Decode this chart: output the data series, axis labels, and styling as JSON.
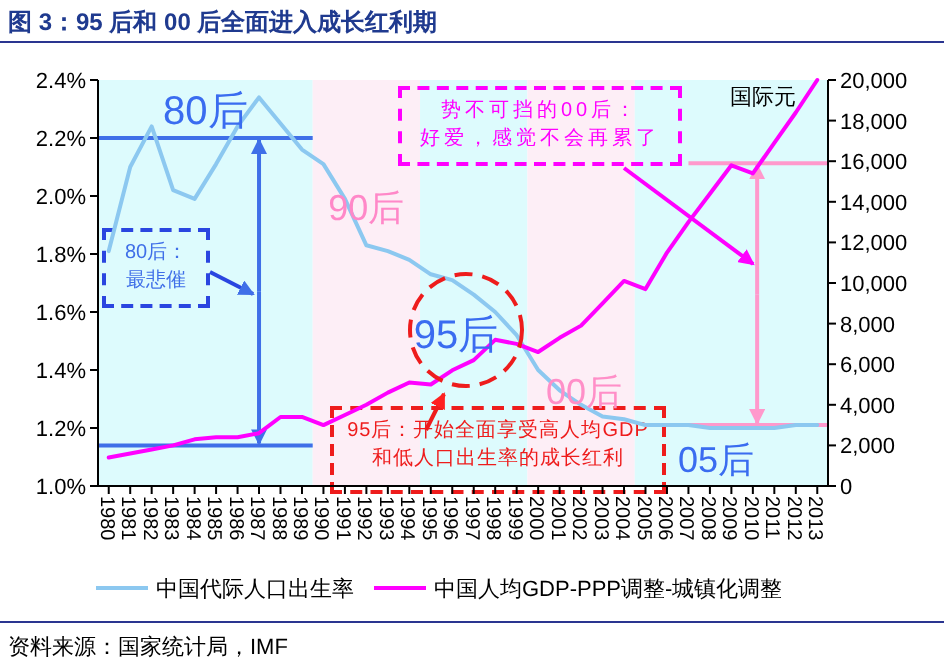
{
  "chart_data": {
    "type": "line",
    "title": "图 3：95 后和 00 后全面进入成长红利期",
    "y2label": "国际元",
    "x": [
      1980,
      1981,
      1982,
      1983,
      1984,
      1985,
      1986,
      1987,
      1988,
      1989,
      1990,
      1991,
      1992,
      1993,
      1994,
      1995,
      1996,
      1997,
      1998,
      1999,
      2000,
      2001,
      2002,
      2003,
      2004,
      2005,
      2006,
      2007,
      2008,
      2009,
      2010,
      2011,
      2012,
      2013
    ],
    "xlim": [
      1979.5,
      2013.5
    ],
    "xticks": [
      1980,
      1981,
      1982,
      1983,
      1984,
      1985,
      1986,
      1987,
      1988,
      1989,
      1990,
      1991,
      1992,
      1993,
      1994,
      1995,
      1996,
      1997,
      1998,
      1999,
      2000,
      2001,
      2002,
      2003,
      2004,
      2005,
      2006,
      2007,
      2008,
      2009,
      2010,
      2011,
      2012,
      2013
    ],
    "ylim": [
      1.0,
      2.4
    ],
    "yticks": [
      {
        "value": 1.0,
        "label": "1.0%"
      },
      {
        "value": 1.2,
        "label": "1.2%"
      },
      {
        "value": 1.4,
        "label": "1.4%"
      },
      {
        "value": 1.6,
        "label": "1.6%"
      },
      {
        "value": 1.8,
        "label": "1.8%"
      },
      {
        "value": 2.0,
        "label": "2.0%"
      },
      {
        "value": 2.2,
        "label": "2.2%"
      },
      {
        "value": 2.4,
        "label": "2.4%"
      }
    ],
    "y2lim": [
      0,
      20000
    ],
    "y2ticks": [
      0,
      {
        "value": 2000,
        "label": "2,000"
      },
      {
        "value": 4000,
        "label": "4,000"
      },
      {
        "value": 6000,
        "label": "6,000"
      },
      {
        "value": 8000,
        "label": "8,000"
      },
      {
        "value": 10000,
        "label": "10,000"
      },
      {
        "value": 12000,
        "label": "12,000"
      },
      {
        "value": 14000,
        "label": "14,000"
      },
      {
        "value": 16000,
        "label": "16,000"
      },
      {
        "value": 18000,
        "label": "18,000"
      },
      {
        "value": 20000,
        "label": "20,000"
      }
    ],
    "series": [
      {
        "name": "中国代际人口出生率",
        "color": "#8cc8f0",
        "values": [
          1.81,
          2.1,
          2.24,
          2.02,
          1.99,
          2.11,
          2.24,
          2.34,
          2.25,
          2.16,
          2.11,
          1.99,
          1.83,
          1.81,
          1.78,
          1.73,
          1.71,
          1.66,
          1.6,
          1.52,
          1.4,
          1.33,
          1.28,
          1.24,
          1.23,
          1.21,
          1.21,
          1.21,
          1.2,
          1.2,
          1.2,
          1.2,
          1.21,
          1.21
        ]
      },
      {
        "name": "中国人均GDP-PPP调整-城镇化调整",
        "color": "#ff00ff",
        "axis": "y2",
        "values": [
          1400,
          1600,
          1800,
          2000,
          2300,
          2400,
          2400,
          2600,
          3400,
          3400,
          3000,
          3500,
          4000,
          4600,
          5100,
          5000,
          5700,
          6200,
          7200,
          7000,
          6600,
          7300,
          7900,
          9000,
          10100,
          9700,
          11500,
          13000,
          14400,
          15800,
          15400,
          16900,
          18400,
          20000
        ]
      }
    ],
    "legend": "bottom",
    "bands": [
      {
        "axis": "x",
        "from": 1979.5,
        "to": 1989.5,
        "label": "80后",
        "color": "#ddfbfd"
      },
      {
        "axis": "x",
        "from": 1989.5,
        "to": 1994.5,
        "label": "90后",
        "color": "#fdeef6"
      },
      {
        "axis": "x",
        "from": 1994.5,
        "to": 1999.5,
        "label": "95后",
        "color": "#ddfbfd"
      },
      {
        "axis": "x",
        "from": 1999.5,
        "to": 2004.5,
        "label": "00后",
        "color": "#fdeef6"
      },
      {
        "axis": "x",
        "from": 2004.5,
        "to": 2013.5,
        "label": "05后",
        "color": "#ddfbfd"
      }
    ],
    "ref_lines": [
      {
        "axis": "y",
        "value": 2.2,
        "color": "#3f6fe8"
      },
      {
        "axis": "y",
        "value": 1.14,
        "color": "#3f6fe8"
      },
      {
        "axis": "y2",
        "value": 15900,
        "color": "#ff99cc"
      },
      {
        "axis": "y2",
        "value": 3000,
        "color": "#ff99cc"
      }
    ],
    "annotations": [
      "80后：最悲催",
      "势不可挡的00后：好爱，感觉不会再累了",
      "95后：开始全面享受高人均GDP和低人口出生率的成长红利",
      "资料来源：国家统计局，IMF"
    ]
  }
}
